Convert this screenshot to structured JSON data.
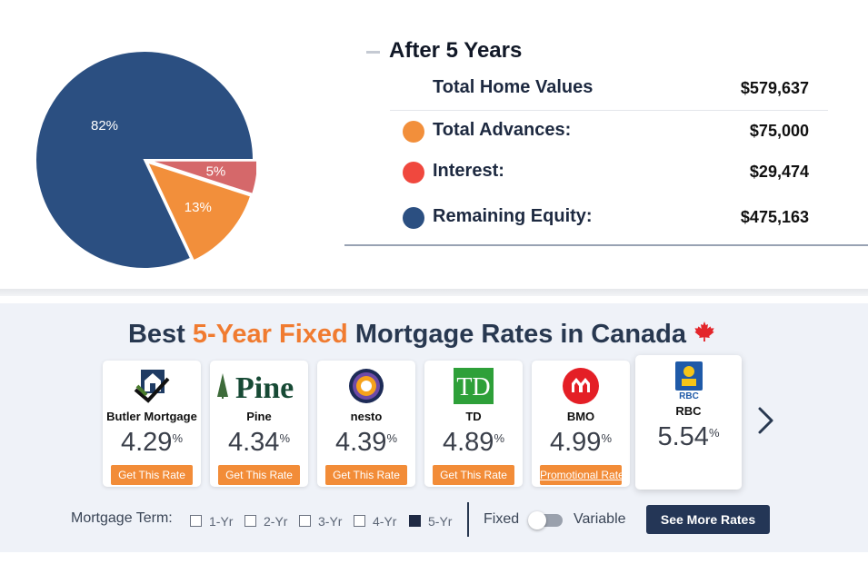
{
  "summary": {
    "heading": "After 5 Years",
    "total_label": "Total Home Values",
    "total_value": "$579,637",
    "rows": [
      {
        "label": "Total Advances:",
        "value": "$75,000",
        "color": "#f28f3b"
      },
      {
        "label": "Interest:",
        "value": "$29,474",
        "color": "#f0483e"
      },
      {
        "label": "Remaining Equity:",
        "value": "$475,163",
        "color": "#2b4f81"
      }
    ]
  },
  "chart_data": {
    "type": "pie",
    "slices": [
      {
        "label": "82%",
        "value": 82,
        "color": "#2b4f81"
      },
      {
        "label": "5%",
        "value": 5,
        "color": "#d5686a"
      },
      {
        "label": "13%",
        "value": 13,
        "color": "#f28f3b"
      }
    ]
  },
  "rates": {
    "title_pre": "Best ",
    "title_highlight": "5-Year Fixed",
    "title_post": " Mortgage Rates in Canada",
    "lenders": [
      {
        "name": "Butler Mortgage",
        "rate": "4.29",
        "pct": "%",
        "cta": "Get This Rate",
        "logo": "butler-house-logo"
      },
      {
        "name": "Pine",
        "rate": "4.34",
        "pct": "%",
        "cta": "Get This Rate",
        "logo": "pine-logo",
        "logo_text": "Pine"
      },
      {
        "name": "nesto",
        "rate": "4.39",
        "pct": "%",
        "cta": "Get This Rate",
        "logo": "nesto-target-logo"
      },
      {
        "name": "TD",
        "rate": "4.89",
        "pct": "%",
        "cta": "Get This Rate",
        "logo": "td-logo",
        "logo_text": "TD"
      },
      {
        "name": "BMO",
        "rate": "4.99",
        "pct": "%",
        "cta": "Promotional Rate",
        "logo": "bmo-logo"
      },
      {
        "name": "RBC",
        "rate": "5.54",
        "pct": "%",
        "cta": "",
        "logo": "rbc-logo",
        "logo_text": "RBC"
      }
    ],
    "term_label": "Mortgage Term:",
    "terms": [
      {
        "label": "1-Yr",
        "checked": false
      },
      {
        "label": "2-Yr",
        "checked": false
      },
      {
        "label": "3-Yr",
        "checked": false
      },
      {
        "label": "4-Yr",
        "checked": false
      },
      {
        "label": "5-Yr",
        "checked": true
      }
    ],
    "fixed_label": "Fixed",
    "variable_label": "Variable",
    "see_more_label": "See More Rates"
  }
}
